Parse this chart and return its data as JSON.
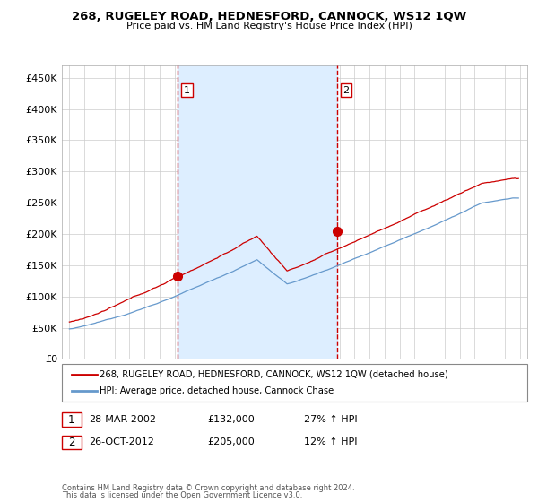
{
  "title": "268, RUGELEY ROAD, HEDNESFORD, CANNOCK, WS12 1QW",
  "subtitle": "Price paid vs. HM Land Registry's House Price Index (HPI)",
  "ylim": [
    0,
    470000
  ],
  "yticks": [
    0,
    50000,
    100000,
    150000,
    200000,
    250000,
    300000,
    350000,
    400000,
    450000
  ],
  "xlim_start": 1994.5,
  "xlim_end": 2025.5,
  "sale1_x": 2002.23,
  "sale1_y": 132000,
  "sale1_label": "1",
  "sale1_date": "28-MAR-2002",
  "sale1_price": "£132,000",
  "sale1_hpi": "27% ↑ HPI",
  "sale2_x": 2012.82,
  "sale2_y": 205000,
  "sale2_label": "2",
  "sale2_date": "26-OCT-2012",
  "sale2_price": "£205,000",
  "sale2_hpi": "12% ↑ HPI",
  "line_property_color": "#cc0000",
  "line_hpi_color": "#6699cc",
  "vline_color": "#cc0000",
  "shade_color": "#ddeeff",
  "legend_label_property": "268, RUGELEY ROAD, HEDNESFORD, CANNOCK, WS12 1QW (detached house)",
  "legend_label_hpi": "HPI: Average price, detached house, Cannock Chase",
  "footer1": "Contains HM Land Registry data © Crown copyright and database right 2024.",
  "footer2": "This data is licensed under the Open Government Licence v3.0.",
  "background_color": "#ffffff",
  "plot_bg_color": "#ffffff",
  "grid_color": "#cccccc"
}
